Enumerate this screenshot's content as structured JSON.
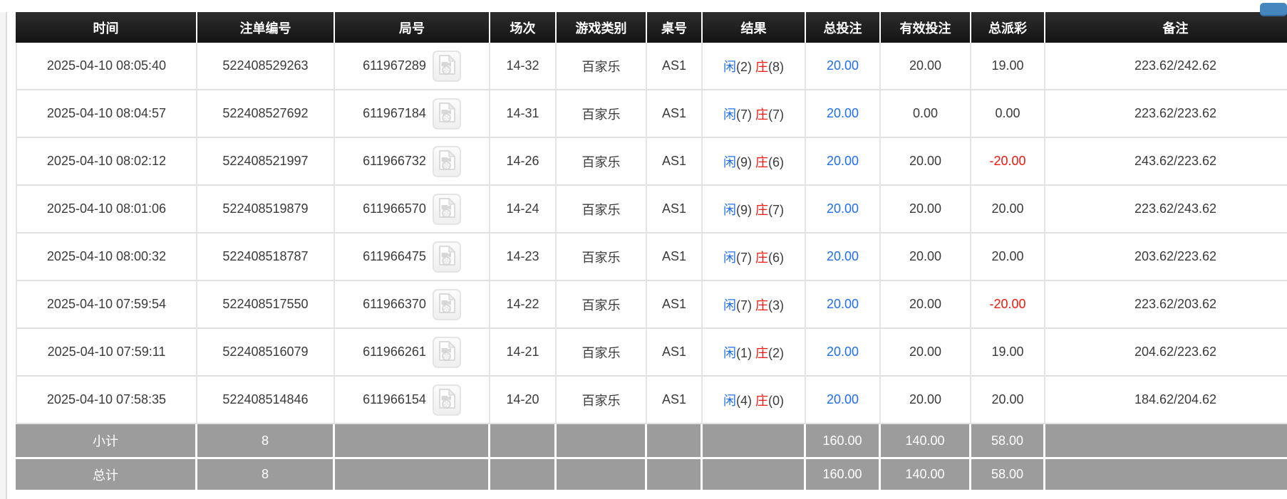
{
  "colors": {
    "accent_blue": "#1e6ef5",
    "negative_red": "#f2180d",
    "banker_red": "#f2180d",
    "header_bg": "#1c1c1c",
    "footer_bg": "#9c9c9c",
    "partial_button_blue": "#4486bd"
  },
  "icons": {
    "round_video": "video-record-icon",
    "top_right": "partial-blue-button"
  },
  "table": {
    "columns": [
      {
        "key": "time",
        "label": "时间"
      },
      {
        "key": "bet_no",
        "label": "注单编号"
      },
      {
        "key": "round_no",
        "label": "局号"
      },
      {
        "key": "session",
        "label": "场次"
      },
      {
        "key": "game_type",
        "label": "游戏类别"
      },
      {
        "key": "table_no",
        "label": "桌号"
      },
      {
        "key": "result",
        "label": "结果"
      },
      {
        "key": "total_bet",
        "label": "总投注"
      },
      {
        "key": "valid_bet",
        "label": "有效投注"
      },
      {
        "key": "total_payout",
        "label": "总派彩"
      },
      {
        "key": "remark",
        "label": "备注"
      }
    ],
    "rows": [
      {
        "time": "2025-04-10 08:05:40",
        "bet_no": "522408529263",
        "round_no": "611967289",
        "session": "14-32",
        "game_type": "百家乐",
        "table_no": "AS1",
        "result": {
          "player_label": "闲",
          "player_score": "(2)",
          "banker_label": "庄",
          "banker_score": "(8)"
        },
        "total_bet": "20.00",
        "valid_bet": "20.00",
        "total_payout": "19.00",
        "remark": "223.62/242.62"
      },
      {
        "time": "2025-04-10 08:04:57",
        "bet_no": "522408527692",
        "round_no": "611967184",
        "session": "14-31",
        "game_type": "百家乐",
        "table_no": "AS1",
        "result": {
          "player_label": "闲",
          "player_score": "(7)",
          "banker_label": "庄",
          "banker_score": "(7)"
        },
        "total_bet": "20.00",
        "valid_bet": "0.00",
        "total_payout": "0.00",
        "remark": "223.62/223.62"
      },
      {
        "time": "2025-04-10 08:02:12",
        "bet_no": "522408521997",
        "round_no": "611966732",
        "session": "14-26",
        "game_type": "百家乐",
        "table_no": "AS1",
        "result": {
          "player_label": "闲",
          "player_score": "(9)",
          "banker_label": "庄",
          "banker_score": "(6)"
        },
        "total_bet": "20.00",
        "valid_bet": "20.00",
        "total_payout": "-20.00",
        "remark": "243.62/223.62"
      },
      {
        "time": "2025-04-10 08:01:06",
        "bet_no": "522408519879",
        "round_no": "611966570",
        "session": "14-24",
        "game_type": "百家乐",
        "table_no": "AS1",
        "result": {
          "player_label": "闲",
          "player_score": "(9)",
          "banker_label": "庄",
          "banker_score": "(7)"
        },
        "total_bet": "20.00",
        "valid_bet": "20.00",
        "total_payout": "20.00",
        "remark": "223.62/243.62"
      },
      {
        "time": "2025-04-10 08:00:32",
        "bet_no": "522408518787",
        "round_no": "611966475",
        "session": "14-23",
        "game_type": "百家乐",
        "table_no": "AS1",
        "result": {
          "player_label": "闲",
          "player_score": "(7)",
          "banker_label": "庄",
          "banker_score": "(6)"
        },
        "total_bet": "20.00",
        "valid_bet": "20.00",
        "total_payout": "20.00",
        "remark": "203.62/223.62"
      },
      {
        "time": "2025-04-10 07:59:54",
        "bet_no": "522408517550",
        "round_no": "611966370",
        "session": "14-22",
        "game_type": "百家乐",
        "table_no": "AS1",
        "result": {
          "player_label": "闲",
          "player_score": "(7)",
          "banker_label": "庄",
          "banker_score": "(3)"
        },
        "total_bet": "20.00",
        "valid_bet": "20.00",
        "total_payout": "-20.00",
        "remark": "223.62/203.62"
      },
      {
        "time": "2025-04-10 07:59:11",
        "bet_no": "522408516079",
        "round_no": "611966261",
        "session": "14-21",
        "game_type": "百家乐",
        "table_no": "AS1",
        "result": {
          "player_label": "闲",
          "player_score": "(1)",
          "banker_label": "庄",
          "banker_score": "(2)"
        },
        "total_bet": "20.00",
        "valid_bet": "20.00",
        "total_payout": "19.00",
        "remark": "204.62/223.62"
      },
      {
        "time": "2025-04-10 07:58:35",
        "bet_no": "522408514846",
        "round_no": "611966154",
        "session": "14-20",
        "game_type": "百家乐",
        "table_no": "AS1",
        "result": {
          "player_label": "闲",
          "player_score": "(4)",
          "banker_label": "庄",
          "banker_score": "(0)"
        },
        "total_bet": "20.00",
        "valid_bet": "20.00",
        "total_payout": "20.00",
        "remark": "184.62/204.62"
      }
    ],
    "footer": [
      {
        "label": "小计",
        "count": "8",
        "total_bet": "160.00",
        "valid_bet": "140.00",
        "total_payout": "58.00"
      },
      {
        "label": "总计",
        "count": "8",
        "total_bet": "160.00",
        "valid_bet": "140.00",
        "total_payout": "58.00"
      }
    ]
  }
}
